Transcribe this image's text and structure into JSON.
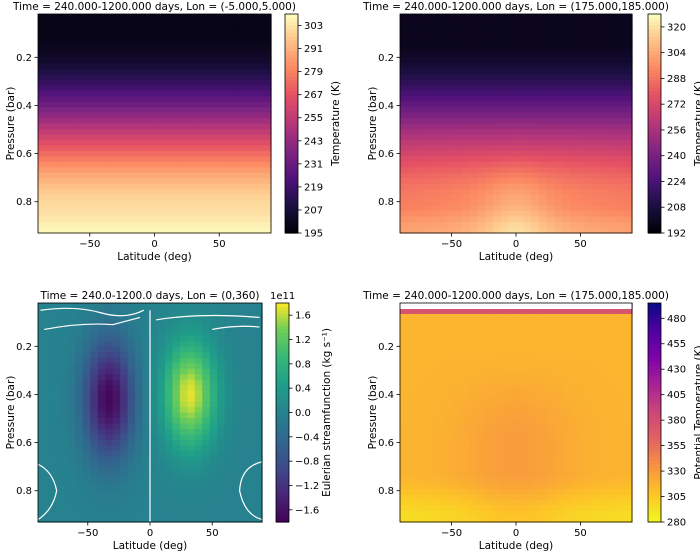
{
  "chart_data": [
    {
      "type": "heatmap",
      "title": "Time = 240.000-1200.000 days, Lon = (-5.000,5.000)",
      "xlabel": "Latitude (deg)",
      "ylabel": "Pressure (bar)",
      "xlim": [
        -90,
        90
      ],
      "ylim": [
        0.93,
        0.02
      ],
      "xticks": [
        -50,
        0,
        50
      ],
      "yticks": [
        0.2,
        0.4,
        0.6,
        0.8
      ],
      "colormap": "magma",
      "colorbar": {
        "label": "Temperature (K)",
        "min": 195,
        "max": 309,
        "ticks": [
          195,
          207,
          219,
          231,
          243,
          255,
          267,
          279,
          291,
          303
        ]
      }
    },
    {
      "type": "heatmap",
      "title": "Time = 240.000-1200.000 days, Lon = (175.000,185.000)",
      "xlabel": "Latitude (deg)",
      "ylabel": "Pressure (bar)",
      "xlim": [
        -90,
        90
      ],
      "ylim": [
        0.93,
        0.02
      ],
      "xticks": [
        -50,
        0,
        50
      ],
      "yticks": [
        0.2,
        0.4,
        0.6,
        0.8
      ],
      "colormap": "magma",
      "colorbar": {
        "label": "Temperature (K)",
        "min": 192,
        "max": 328,
        "ticks": [
          192,
          208,
          224,
          240,
          256,
          272,
          288,
          304,
          320
        ]
      }
    },
    {
      "type": "heatmap",
      "title": "Time = 240.0-1200.0 days, Lon = (0,360)",
      "xlabel": "Latitude (deg)",
      "ylabel": "Pressure (bar)",
      "xlim": [
        -90,
        90
      ],
      "ylim": [
        0.93,
        0.02
      ],
      "xticks": [
        -50,
        0,
        50
      ],
      "yticks": [
        0.2,
        0.4,
        0.6,
        0.8
      ],
      "colormap": "viridis",
      "colorbar": {
        "label": "Eulerian streamfunction (kg s⁻¹)",
        "multiplier": "1e11",
        "min": -1.8,
        "max": 1.8,
        "ticks": [
          "-1.6",
          "-1.2",
          "-0.8",
          "-0.4",
          "0.0",
          "0.4",
          "0.8",
          "1.2",
          "1.6"
        ]
      },
      "features": {
        "min_cell": {
          "lat": -33,
          "p": 0.4,
          "value": -1.75
        },
        "max_cell": {
          "lat": 32,
          "p": 0.4,
          "value": 1.75
        },
        "zero_contour": "white"
      }
    },
    {
      "type": "heatmap",
      "title": "Time = 240.000-1200.000 days, Lon = (175.000,185.000)",
      "xlabel": "Latitude (deg)",
      "ylabel": "Pressure (bar)",
      "xlim": [
        -90,
        90
      ],
      "ylim": [
        0.93,
        0.02
      ],
      "xticks": [
        -50,
        0,
        50
      ],
      "yticks": [
        0.2,
        0.4,
        0.6,
        0.8
      ],
      "colormap": "plasma_r",
      "colorbar": {
        "label": "Potential Temperature (K)",
        "min": 280,
        "max": 495,
        "ticks": [
          280,
          305,
          330,
          355,
          380,
          405,
          430,
          455,
          480
        ]
      }
    }
  ]
}
